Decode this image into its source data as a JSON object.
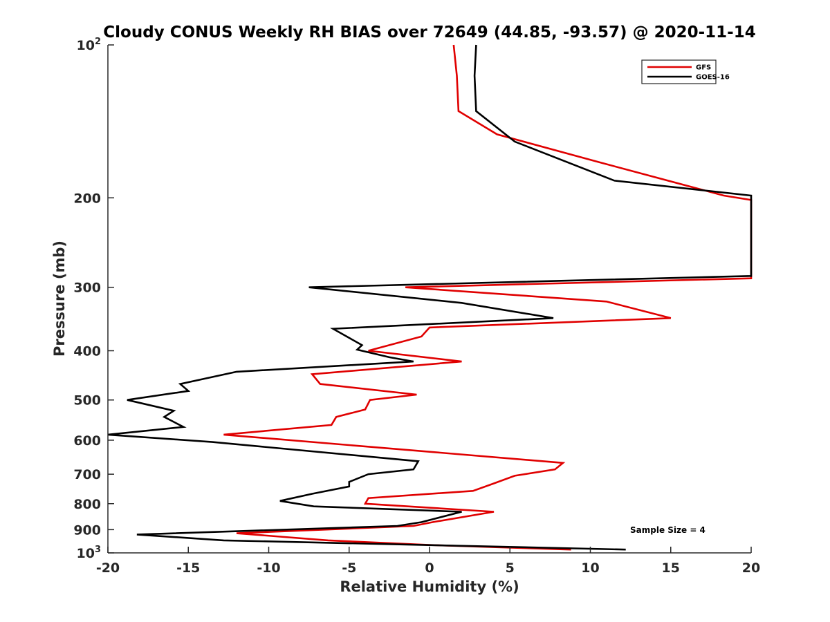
{
  "chart_data": {
    "type": "line",
    "title": "Cloudy CONUS Weekly RH BIAS over 72649 (44.85, -93.57) @ 2020-11-14",
    "xlabel": "Relative Humidity (%)",
    "ylabel": "Pressure (mb)",
    "xlim": [
      -20,
      20
    ],
    "ylim": [
      100,
      1000
    ],
    "y_scale": "log",
    "y_reversed": true,
    "grid": false,
    "legend_position": "top-right",
    "x_ticks": [
      "-20",
      "-15",
      "-10",
      "-5",
      "0",
      "5",
      "10",
      "15",
      "20"
    ],
    "y_ticks": [
      {
        "value": 100,
        "base": "10",
        "exp": "2"
      },
      {
        "value": 200,
        "label": "200"
      },
      {
        "value": 300,
        "label": "300"
      },
      {
        "value": 400,
        "label": "400"
      },
      {
        "value": 500,
        "label": "500"
      },
      {
        "value": 600,
        "label": "600"
      },
      {
        "value": 700,
        "label": "700"
      },
      {
        "value": 800,
        "label": "800"
      },
      {
        "value": 900,
        "label": "900"
      },
      {
        "value": 1000,
        "base": "10",
        "exp": "3"
      }
    ],
    "annotation": "Sample Size = 4",
    "series": [
      {
        "name": "GFS",
        "color": "#e00000",
        "points": [
          {
            "p": 100,
            "rh": 1.5
          },
          {
            "p": 115,
            "rh": 1.7
          },
          {
            "p": 135,
            "rh": 1.8
          },
          {
            "p": 150,
            "rh": 4.2
          },
          {
            "p": 170,
            "rh": 10.5
          },
          {
            "p": 198,
            "rh": 18.3
          },
          {
            "p": 202,
            "rh": 20
          },
          {
            "p": 288,
            "rh": 20
          },
          {
            "p": 300,
            "rh": -1.5
          },
          {
            "p": 320,
            "rh": 11.0
          },
          {
            "p": 345,
            "rh": 15.0
          },
          {
            "p": 360,
            "rh": 0
          },
          {
            "p": 375,
            "rh": -0.5
          },
          {
            "p": 400,
            "rh": -3.8
          },
          {
            "p": 420,
            "rh": 2.0
          },
          {
            "p": 445,
            "rh": -7.3
          },
          {
            "p": 465,
            "rh": -6.8
          },
          {
            "p": 488,
            "rh": -0.8
          },
          {
            "p": 500,
            "rh": -3.7
          },
          {
            "p": 522,
            "rh": -4.0
          },
          {
            "p": 540,
            "rh": -5.8
          },
          {
            "p": 560,
            "rh": -6.1
          },
          {
            "p": 585,
            "rh": -12.8
          },
          {
            "p": 665,
            "rh": 8.3
          },
          {
            "p": 685,
            "rh": 7.8
          },
          {
            "p": 705,
            "rh": 5.3
          },
          {
            "p": 730,
            "rh": 4.0
          },
          {
            "p": 755,
            "rh": 2.7
          },
          {
            "p": 780,
            "rh": -3.8
          },
          {
            "p": 800,
            "rh": -4.0
          },
          {
            "p": 830,
            "rh": 4.0
          },
          {
            "p": 870,
            "rh": 0.2
          },
          {
            "p": 885,
            "rh": -1.0
          },
          {
            "p": 915,
            "rh": -12.0
          },
          {
            "p": 945,
            "rh": -6.3
          },
          {
            "p": 965,
            "rh": 0
          },
          {
            "p": 985,
            "rh": 8.8
          }
        ]
      },
      {
        "name": "GOES-16",
        "color": "#000000",
        "points": [
          {
            "p": 100,
            "rh": 2.9
          },
          {
            "p": 115,
            "rh": 2.8
          },
          {
            "p": 135,
            "rh": 2.9
          },
          {
            "p": 155,
            "rh": 5.3
          },
          {
            "p": 185,
            "rh": 11.5
          },
          {
            "p": 198,
            "rh": 20
          },
          {
            "p": 285,
            "rh": 20
          },
          {
            "p": 300,
            "rh": -7.5
          },
          {
            "p": 322,
            "rh": 2.0
          },
          {
            "p": 345,
            "rh": 7.7
          },
          {
            "p": 362,
            "rh": -6.0
          },
          {
            "p": 390,
            "rh": -4.2
          },
          {
            "p": 398,
            "rh": -4.5
          },
          {
            "p": 412,
            "rh": -2.5
          },
          {
            "p": 420,
            "rh": -1.0
          },
          {
            "p": 440,
            "rh": -12.0
          },
          {
            "p": 465,
            "rh": -15.5
          },
          {
            "p": 480,
            "rh": -15.0
          },
          {
            "p": 500,
            "rh": -18.8
          },
          {
            "p": 525,
            "rh": -15.9
          },
          {
            "p": 540,
            "rh": -16.5
          },
          {
            "p": 565,
            "rh": -15.3
          },
          {
            "p": 585,
            "rh": -20
          },
          {
            "p": 605,
            "rh": -13.5
          },
          {
            "p": 660,
            "rh": -0.7
          },
          {
            "p": 685,
            "rh": -1.0
          },
          {
            "p": 700,
            "rh": -3.8
          },
          {
            "p": 725,
            "rh": -5.0
          },
          {
            "p": 740,
            "rh": -5.0
          },
          {
            "p": 765,
            "rh": -7.3
          },
          {
            "p": 790,
            "rh": -9.3
          },
          {
            "p": 810,
            "rh": -7.2
          },
          {
            "p": 830,
            "rh": 2.0
          },
          {
            "p": 870,
            "rh": -0.5
          },
          {
            "p": 885,
            "rh": -2.0
          },
          {
            "p": 920,
            "rh": -18.2
          },
          {
            "p": 945,
            "rh": -12.8
          },
          {
            "p": 970,
            "rh": 3.0
          },
          {
            "p": 985,
            "rh": 12.2
          }
        ]
      }
    ]
  }
}
